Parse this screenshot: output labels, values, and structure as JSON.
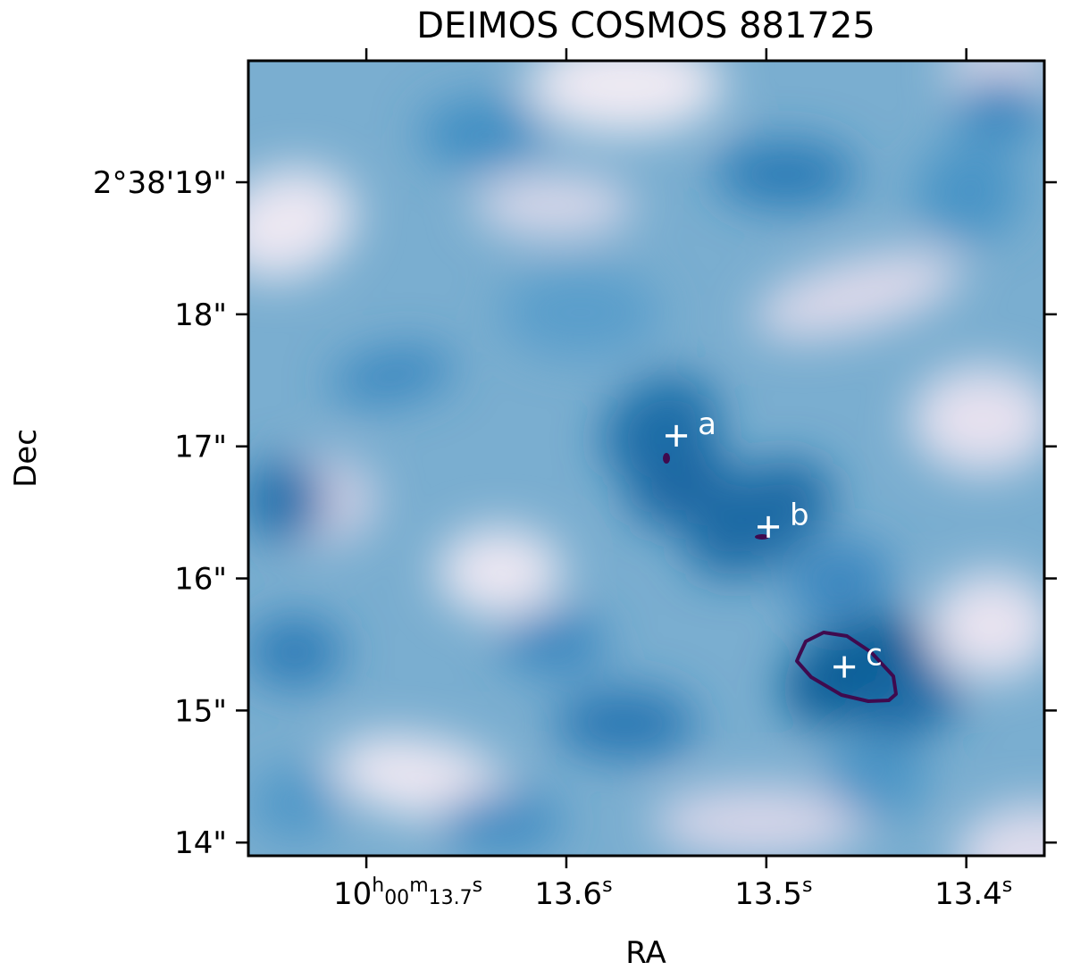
{
  "chart_data": {
    "type": "heatmap",
    "title": "DEIMOS COSMOS 881725",
    "xlabel": "RA",
    "ylabel": "Dec",
    "x_ticks": [
      {
        "value": 13.7,
        "label_main": "10",
        "sup_h": "h",
        "label_mid": "00",
        "sup_m": "m",
        "label_sec": "13.7",
        "sup_s": "s"
      },
      {
        "value": 13.6,
        "label_sec": "13.6",
        "sup_s": "s"
      },
      {
        "value": 13.5,
        "label_sec": "13.5",
        "sup_s": "s"
      },
      {
        "value": 13.4,
        "label_sec": "13.4",
        "sup_s": "s"
      }
    ],
    "y_ticks": [
      {
        "value": 19,
        "label": "2°38'19\""
      },
      {
        "value": 18,
        "label": "18\""
      },
      {
        "value": 17,
        "label": "17\""
      },
      {
        "value": 16,
        "label": "16\""
      },
      {
        "value": 15,
        "label": "15\""
      },
      {
        "value": 14,
        "label": "14\""
      }
    ],
    "xlim_seconds": [
      13.759,
      13.361
    ],
    "ylim_arcsec": [
      13.9,
      19.92
    ],
    "colormap": "PuBu",
    "markers": [
      {
        "label": "a",
        "ra_s": 13.545,
        "dec_arcsec": 17.08
      },
      {
        "label": "b",
        "ra_s": 13.499,
        "dec_arcsec": 16.39
      },
      {
        "label": "c",
        "ra_s": 13.461,
        "dec_arcsec": 15.33
      }
    ],
    "contour_color": "#3f0a4e"
  }
}
